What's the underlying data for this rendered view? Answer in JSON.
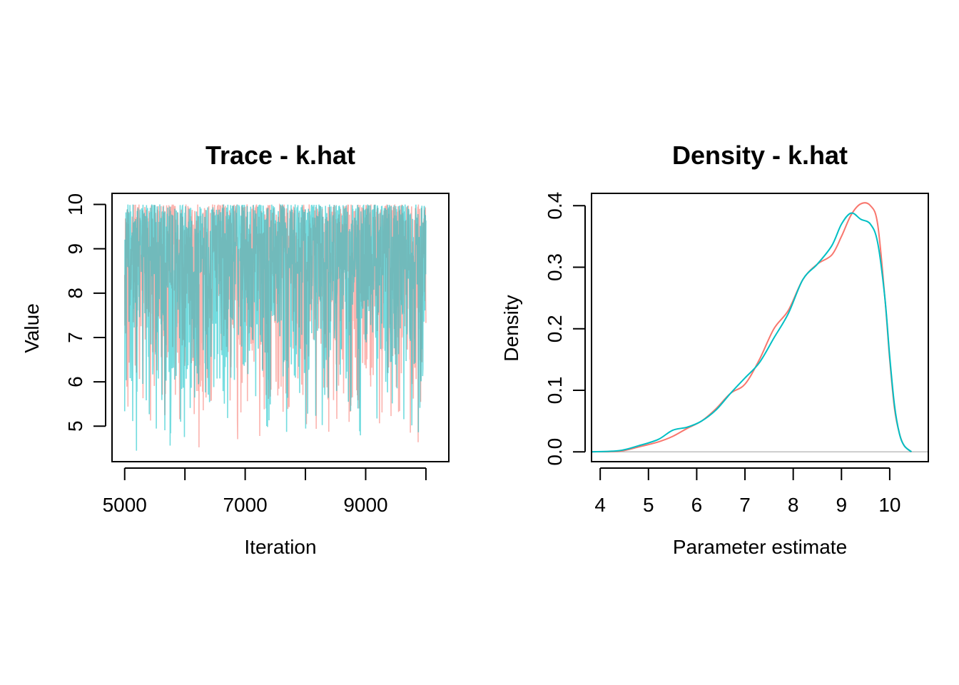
{
  "chart_data": [
    {
      "type": "line",
      "title": "Trace - k.hat",
      "xlabel": "Iteration",
      "ylabel": "Value",
      "xlim": [
        4790,
        10380
      ],
      "ylim": [
        4.2,
        10.25
      ],
      "x_ticks": [
        5000,
        7000,
        9000
      ],
      "x_minor_ticks": [
        5000,
        6000,
        7000,
        8000,
        9000,
        10000
      ],
      "y_ticks": [
        5,
        6,
        7,
        8,
        9,
        10
      ],
      "iterations": [
        5000,
        10000
      ],
      "value_range": [
        4.3,
        10.0
      ],
      "series": [
        {
          "color": "#F8766D",
          "opacity": 0.55
        },
        {
          "color": "#00BFC4",
          "opacity": 0.55
        }
      ]
    },
    {
      "type": "line",
      "title": "Density - k.hat",
      "xlabel": "Parameter estimate",
      "ylabel": "Density",
      "xlim": [
        3.82,
        10.8
      ],
      "ylim": [
        -0.016,
        0.42
      ],
      "x_ticks": [
        4,
        5,
        6,
        7,
        8,
        9,
        10
      ],
      "y_ticks": [
        0.0,
        0.1,
        0.2,
        0.3,
        0.4
      ],
      "y_tick_labels": [
        "0.0",
        "0.1",
        "0.2",
        "0.3",
        "0.4"
      ],
      "baseline": 0,
      "series": [
        {
          "color": "#F8766D",
          "points": [
            [
              3.82,
              0.0
            ],
            [
              4.4,
              0.001
            ],
            [
              4.8,
              0.008
            ],
            [
              5.2,
              0.016
            ],
            [
              5.5,
              0.025
            ],
            [
              5.8,
              0.038
            ],
            [
              6.1,
              0.05
            ],
            [
              6.4,
              0.07
            ],
            [
              6.7,
              0.095
            ],
            [
              7.0,
              0.11
            ],
            [
              7.3,
              0.15
            ],
            [
              7.6,
              0.2
            ],
            [
              7.9,
              0.23
            ],
            [
              8.2,
              0.28
            ],
            [
              8.5,
              0.305
            ],
            [
              8.8,
              0.32
            ],
            [
              9.0,
              0.35
            ],
            [
              9.2,
              0.385
            ],
            [
              9.4,
              0.403
            ],
            [
              9.6,
              0.4
            ],
            [
              9.75,
              0.37
            ],
            [
              9.9,
              0.25
            ],
            [
              10.0,
              0.15
            ],
            [
              10.1,
              0.07
            ],
            [
              10.2,
              0.03
            ],
            [
              10.3,
              0.01
            ],
            [
              10.45,
              0.0
            ]
          ]
        },
        {
          "color": "#00BFC4",
          "points": [
            [
              3.82,
              0.0
            ],
            [
              4.4,
              0.002
            ],
            [
              4.8,
              0.01
            ],
            [
              5.2,
              0.02
            ],
            [
              5.5,
              0.035
            ],
            [
              5.8,
              0.04
            ],
            [
              6.1,
              0.05
            ],
            [
              6.4,
              0.068
            ],
            [
              6.7,
              0.095
            ],
            [
              7.0,
              0.12
            ],
            [
              7.3,
              0.145
            ],
            [
              7.6,
              0.185
            ],
            [
              7.9,
              0.225
            ],
            [
              8.2,
              0.28
            ],
            [
              8.5,
              0.305
            ],
            [
              8.8,
              0.335
            ],
            [
              9.0,
              0.37
            ],
            [
              9.2,
              0.388
            ],
            [
              9.4,
              0.378
            ],
            [
              9.6,
              0.37
            ],
            [
              9.75,
              0.34
            ],
            [
              9.9,
              0.25
            ],
            [
              10.0,
              0.155
            ],
            [
              10.1,
              0.075
            ],
            [
              10.2,
              0.03
            ],
            [
              10.3,
              0.01
            ],
            [
              10.45,
              0.0
            ]
          ]
        }
      ]
    }
  ]
}
